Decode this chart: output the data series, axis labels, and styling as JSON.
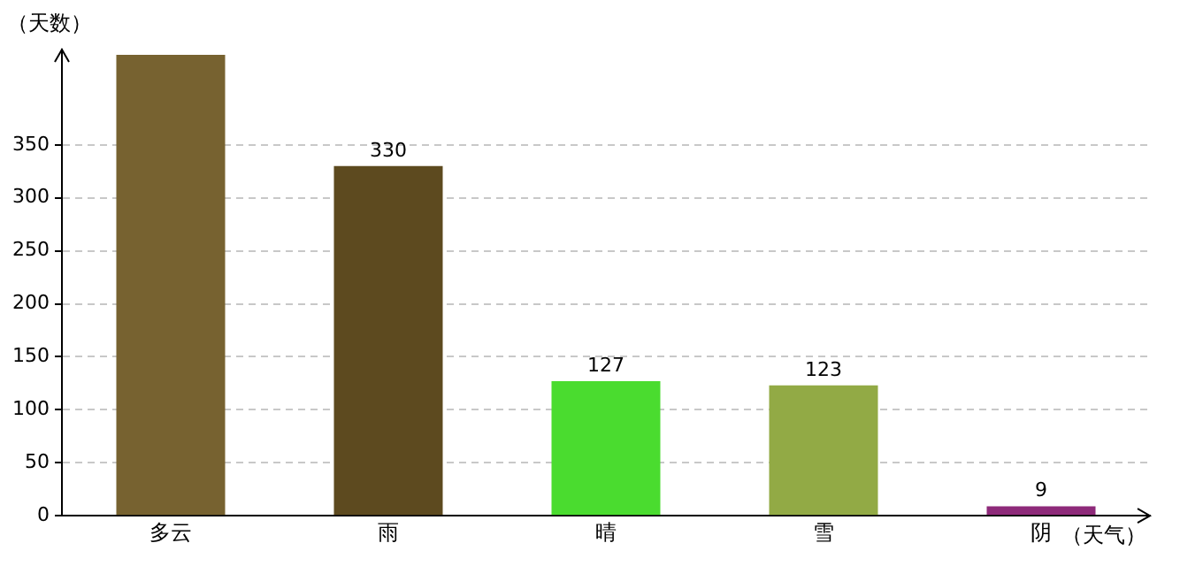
{
  "chart_data": {
    "type": "bar",
    "xlabel": "（天气）",
    "ylabel": "（天数）",
    "categories": [
      "多云",
      "雨",
      "晴",
      "雪",
      "阴"
    ],
    "values": [
      435,
      330,
      127,
      123,
      9
    ],
    "value_labels": [
      null,
      "330",
      "127",
      "123",
      "9"
    ],
    "colors": [
      "#776230",
      "#5d4a1f",
      "#4adc2f",
      "#92aa45",
      "#8e2a7a"
    ],
    "ylim": [
      0,
      440
    ],
    "yticks": [
      0,
      50,
      100,
      150,
      200,
      250,
      300,
      350
    ],
    "grid": "y"
  }
}
